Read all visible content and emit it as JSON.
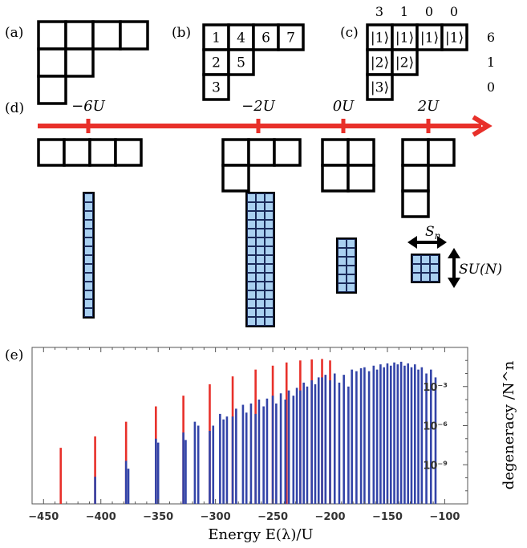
{
  "panels": {
    "a": {
      "label": "(a)",
      "rows": [
        4,
        2,
        1
      ]
    },
    "b": {
      "label": "(b)",
      "rows": [
        [
          "1",
          "4",
          "6",
          "7"
        ],
        [
          "2",
          "5"
        ],
        [
          "3"
        ]
      ]
    },
    "c": {
      "label": "(c)",
      "rows": [
        [
          "|1⟩",
          "|1⟩",
          "|1⟩",
          "|1⟩"
        ],
        [
          "|2⟩",
          "|2⟩"
        ],
        [
          "|3⟩"
        ]
      ],
      "column_counts": [
        "3",
        "1",
        "0",
        "0"
      ],
      "row_counts": [
        "6",
        "1",
        "0"
      ]
    },
    "d": {
      "label": "(d)",
      "axis_ticks": [
        {
          "label": "−6U",
          "shape": [
            4
          ]
        },
        {
          "label": "−2U",
          "shape": [
            3,
            1
          ]
        },
        {
          "label": "0U",
          "shape": [
            2,
            2
          ]
        },
        {
          "label": "2U",
          "shape": [
            2,
            1,
            1
          ]
        }
      ],
      "matrices": [
        {
          "cols": 1,
          "rows": 14
        },
        {
          "cols": 3,
          "rows": 15
        },
        {
          "cols": 2,
          "rows": 6
        },
        {
          "cols": 3,
          "rows": 3
        }
      ],
      "sn_label": "Sn",
      "sun_label": "SU(N)"
    },
    "e": {
      "label": "(e)"
    }
  },
  "colors": {
    "red": "#e8302a",
    "blue": "#3344a8",
    "cell": "#a9d0f0",
    "axis": "#555555"
  },
  "chart_data": {
    "type": "bar",
    "log_scale": true,
    "xlabel": "Energy  E(λ)/U",
    "ylabel": "degeneracy  /N^n",
    "xlim": [
      -460,
      -80
    ],
    "ylim": [
      1e-12,
      1
    ],
    "xticks": [
      -450,
      -400,
      -350,
      -300,
      -250,
      -200,
      -150,
      -100
    ],
    "yticks": [
      {
        "value": 1e-09,
        "label": "10⁻⁹"
      },
      {
        "value": 1e-06,
        "label": "10⁻⁶"
      },
      {
        "value": 0.001,
        "label": "10⁻³"
      }
    ],
    "series": [
      {
        "color": "red",
        "points": [
          [
            -435,
            2e-08
          ],
          [
            -405,
            1.5e-07
          ],
          [
            -378,
            2e-06
          ],
          [
            -352,
            3e-05
          ],
          [
            -328,
            0.0002
          ],
          [
            -305,
            0.0015
          ],
          [
            -285,
            0.006
          ],
          [
            -265,
            0.02
          ],
          [
            -250,
            0.04
          ],
          [
            -238,
            0.07
          ],
          [
            -226,
            0.1
          ],
          [
            -216,
            0.12
          ],
          [
            -207,
            0.13
          ],
          [
            -200,
            0.1
          ]
        ]
      },
      {
        "color": "blue",
        "points": [
          [
            -405,
            1.2e-10
          ],
          [
            -378,
            2e-09
          ],
          [
            -376,
            5e-10
          ],
          [
            -352,
            1e-07
          ],
          [
            -350,
            5e-08
          ],
          [
            -328,
            3e-07
          ],
          [
            -326,
            8e-08
          ],
          [
            -318,
            2e-06
          ],
          [
            -315,
            1e-06
          ],
          [
            -305,
            4e-07
          ],
          [
            -302,
            1e-06
          ],
          [
            -296,
            8e-06
          ],
          [
            -293,
            3e-06
          ],
          [
            -290,
            5e-06
          ],
          [
            -285,
            5e-06
          ],
          [
            -282,
            2e-05
          ],
          [
            -276,
            4e-05
          ],
          [
            -273,
            1e-05
          ],
          [
            -269,
            5e-05
          ],
          [
            -265,
            8e-06
          ],
          [
            -262,
            0.0001
          ],
          [
            -258,
            3e-05
          ],
          [
            -255,
            0.00012
          ],
          [
            -250,
            0.0002
          ],
          [
            -247,
            5e-05
          ],
          [
            -243,
            0.0003
          ],
          [
            -239,
            0.0001
          ],
          [
            -236,
            0.0005
          ],
          [
            -232,
            0.0002
          ],
          [
            -229,
            0.0008
          ],
          [
            -226,
            0.0005
          ],
          [
            -223,
            0.002
          ],
          [
            -220,
            0.001
          ],
          [
            -216,
            0.003
          ],
          [
            -213,
            0.0015
          ],
          [
            -210,
            0.005
          ],
          [
            -207,
            0.005
          ],
          [
            -204,
            0.008
          ],
          [
            -200,
            0.003
          ],
          [
            -196,
            0.01
          ],
          [
            -192,
            0.002
          ],
          [
            -188,
            0.008
          ],
          [
            -184,
            0.001
          ],
          [
            -181,
            0.02
          ],
          [
            -177,
            0.015
          ],
          [
            -173,
            0.025
          ],
          [
            -170,
            0.03
          ],
          [
            -166,
            0.015
          ],
          [
            -162,
            0.04
          ],
          [
            -159,
            0.02
          ],
          [
            -156,
            0.05
          ],
          [
            -153,
            0.03
          ],
          [
            -150,
            0.06
          ],
          [
            -147,
            0.04
          ],
          [
            -144,
            0.07
          ],
          [
            -141,
            0.05
          ],
          [
            -138,
            0.08
          ],
          [
            -135,
            0.04
          ],
          [
            -132,
            0.06
          ],
          [
            -129,
            0.03
          ],
          [
            -126,
            0.05
          ],
          [
            -123,
            0.02
          ],
          [
            -120,
            0.03
          ],
          [
            -116,
            0.01
          ],
          [
            -112,
            0.02
          ],
          [
            -108,
            0.005
          ]
        ]
      }
    ]
  }
}
